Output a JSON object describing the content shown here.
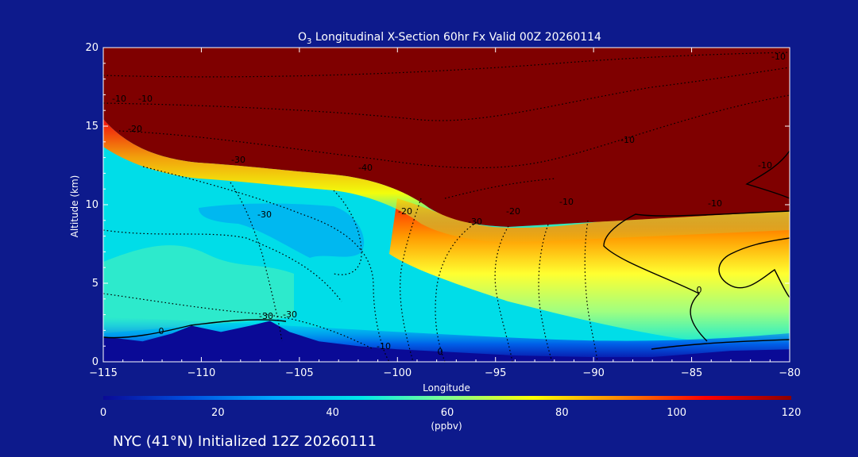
{
  "colors": {
    "background": "#0d1a8c",
    "stratosphere": "#7f0000",
    "terrain": "#0a0a96",
    "contour": "#000000",
    "text": "#ffffff"
  },
  "chart_data": {
    "type": "heatmap",
    "title_species": "O",
    "title_subscript": "3",
    "title_rest": " Longitudinal X-Section 60hr  Fx Valid 00Z 20260114",
    "xlabel": "Longitude",
    "ylabel": "Altitude (km)",
    "xlim": [
      -115,
      -80
    ],
    "ylim": [
      0,
      20
    ],
    "x_ticks": [
      -115,
      -110,
      -105,
      -100,
      -95,
      -90,
      -85,
      -80
    ],
    "x_tick_labels": [
      "−115",
      "−110",
      "−105",
      "−100",
      "−95",
      "−90",
      "−85",
      "−80"
    ],
    "y_ticks": [
      0,
      5,
      10,
      15,
      20
    ],
    "y_tick_labels": [
      "0",
      "5",
      "10",
      "15",
      "20"
    ],
    "colorbar": {
      "min": 0,
      "max": 120,
      "ticks": [
        0,
        20,
        40,
        60,
        80,
        100,
        120
      ],
      "tick_labels": [
        "0",
        "20",
        "40",
        "60",
        "80",
        "100",
        "120"
      ],
      "units": "(ppbv)",
      "gradient": [
        "#0a0a96",
        "#0050e0",
        "#00aaff",
        "#00e8e8",
        "#80ff90",
        "#ffff00",
        "#ff8800",
        "#ff0000",
        "#8b0000"
      ]
    },
    "contour_labels": [
      "-10",
      "-20",
      "-30",
      "-40",
      "-30",
      "-20",
      "-10",
      "-10",
      "-30",
      "-30",
      "-10",
      "0",
      "0",
      "0",
      "-10",
      "-10",
      "-30",
      "-20",
      "-10",
      "-10"
    ],
    "tropopause_altitude_km": {
      "lon": [
        -115,
        -113,
        -110,
        -107,
        -104,
        -102,
        -100,
        -98,
        -96,
        -94,
        -92,
        -90,
        -88,
        -86,
        -84,
        -82,
        -80
      ],
      "alt": [
        15.2,
        12.8,
        12.3,
        12.0,
        11.6,
        11.2,
        10.4,
        9.1,
        8.7,
        8.7,
        8.8,
        8.9,
        9.2,
        9.5,
        9.6,
        9.6,
        9.6
      ]
    },
    "terrain_altitude_km": {
      "lon": [
        -115,
        -113,
        -111.5,
        -110.5,
        -109,
        -107.5,
        -106.5,
        -105.5,
        -104,
        -102,
        -100,
        -97,
        -94,
        -90,
        -87,
        -85,
        -83,
        -80
      ],
      "alt": [
        1.6,
        1.3,
        1.8,
        2.3,
        1.9,
        2.3,
        2.6,
        1.9,
        1.3,
        1.0,
        0.8,
        0.6,
        0.4,
        0.3,
        0.3,
        0.5,
        0.7,
        0.8
      ]
    },
    "footer": "NYC (41°N) Initialized 12Z 20260111"
  }
}
